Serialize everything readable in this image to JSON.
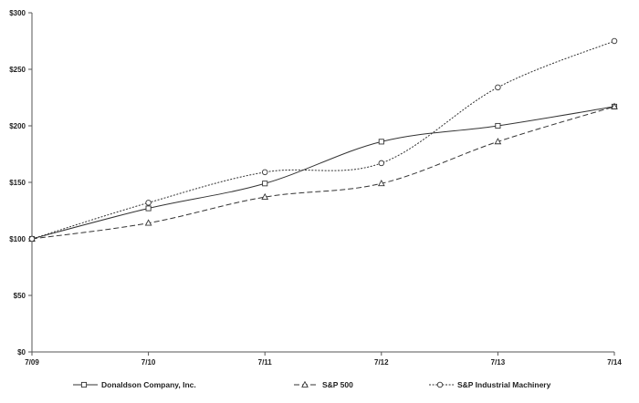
{
  "chart_data": {
    "type": "line",
    "title": "",
    "xlabel": "",
    "ylabel": "",
    "categories": [
      "7/09",
      "7/10",
      "7/11",
      "7/12",
      "7/13",
      "7/14"
    ],
    "ylim": [
      0,
      300
    ],
    "yticks": [
      0,
      50,
      100,
      150,
      200,
      250,
      300
    ],
    "ytick_labels": [
      "$0",
      "$50",
      "$100",
      "$150",
      "$200",
      "$250",
      "$300"
    ],
    "grid": false,
    "legend_position": "bottom",
    "series": [
      {
        "name": "Donaldson Company, Inc.",
        "values": [
          100,
          127,
          149,
          186,
          200,
          217
        ],
        "marker": "square",
        "line_style": "solid",
        "color": "#333333"
      },
      {
        "name": "S&P 500",
        "values": [
          100,
          114,
          137,
          149,
          186,
          217
        ],
        "marker": "triangle",
        "line_style": "dashed",
        "color": "#333333"
      },
      {
        "name": "S&P Industrial Machinery",
        "values": [
          100,
          132,
          159,
          167,
          234,
          275
        ],
        "marker": "circle",
        "line_style": "dotted",
        "color": "#333333"
      }
    ]
  }
}
